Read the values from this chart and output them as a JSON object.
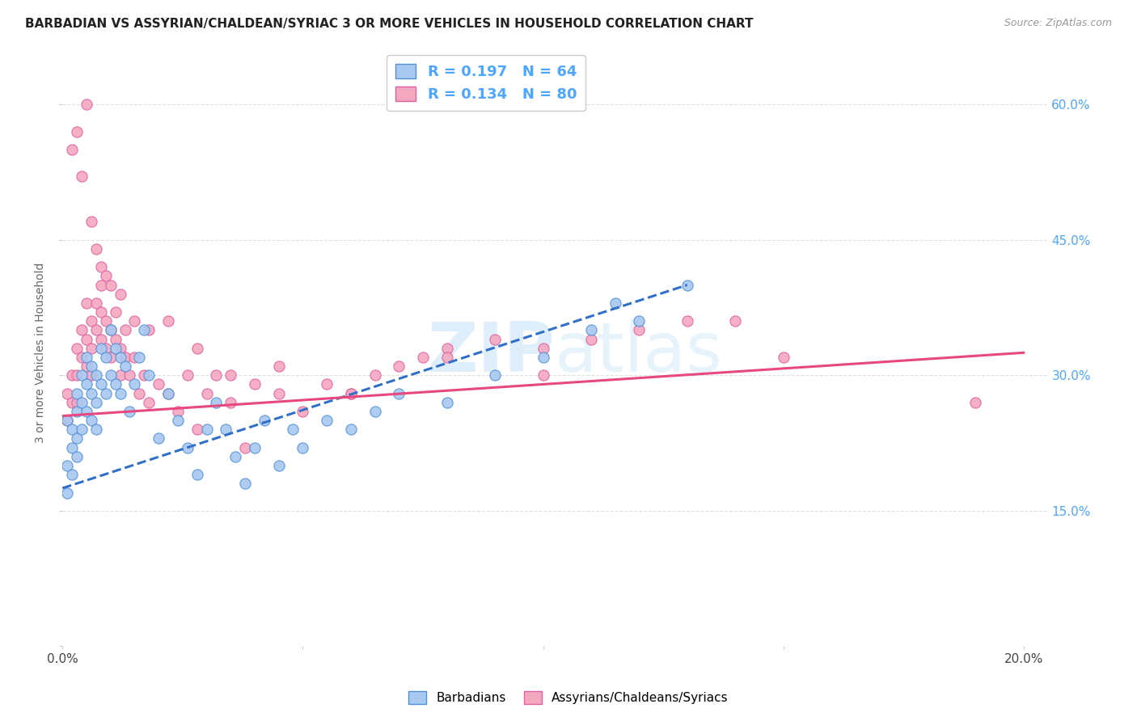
{
  "title": "BARBADIAN VS ASSYRIAN/CHALDEAN/SYRIAC 3 OR MORE VEHICLES IN HOUSEHOLD CORRELATION CHART",
  "source": "Source: ZipAtlas.com",
  "ylabel": "3 or more Vehicles in Household",
  "legend_blue_R": "R = 0.197",
  "legend_blue_N": "N = 64",
  "legend_pink_R": "R = 0.134",
  "legend_pink_N": "N = 80",
  "legend_label_blue": "Barbadians",
  "legend_label_pink": "Assyrians/Chaldeans/Syriacs",
  "blue_scatter_color": "#a8c8f0",
  "pink_scatter_color": "#f4a8c0",
  "blue_line_color": "#3070c8",
  "pink_line_color": "#e84880",
  "blue_edge_color": "#5090d8",
  "pink_edge_color": "#e060a0",
  "right_axis_label_color": "#4da6ff",
  "legend_text_color": "#4da6ff",
  "watermark_color": "#d0e8f8",
  "grid_color": "#e0e0e0",
  "title_color": "#222222",
  "background_color": "#ffffff",
  "blue_scatter_x": [
    0.001,
    0.001,
    0.001,
    0.002,
    0.002,
    0.002,
    0.003,
    0.003,
    0.003,
    0.003,
    0.004,
    0.004,
    0.004,
    0.005,
    0.005,
    0.005,
    0.006,
    0.006,
    0.006,
    0.007,
    0.007,
    0.007,
    0.008,
    0.008,
    0.009,
    0.009,
    0.01,
    0.01,
    0.011,
    0.011,
    0.012,
    0.012,
    0.013,
    0.014,
    0.015,
    0.016,
    0.017,
    0.018,
    0.02,
    0.022,
    0.024,
    0.026,
    0.028,
    0.03,
    0.032,
    0.034,
    0.036,
    0.038,
    0.04,
    0.042,
    0.045,
    0.048,
    0.05,
    0.055,
    0.06,
    0.065,
    0.07,
    0.08,
    0.09,
    0.1,
    0.11,
    0.115,
    0.12,
    0.13
  ],
  "blue_scatter_y": [
    0.25,
    0.2,
    0.17,
    0.22,
    0.19,
    0.24,
    0.28,
    0.26,
    0.23,
    0.21,
    0.3,
    0.27,
    0.24,
    0.32,
    0.29,
    0.26,
    0.31,
    0.28,
    0.25,
    0.3,
    0.27,
    0.24,
    0.33,
    0.29,
    0.32,
    0.28,
    0.35,
    0.3,
    0.33,
    0.29,
    0.32,
    0.28,
    0.31,
    0.26,
    0.29,
    0.32,
    0.35,
    0.3,
    0.23,
    0.28,
    0.25,
    0.22,
    0.19,
    0.24,
    0.27,
    0.24,
    0.21,
    0.18,
    0.22,
    0.25,
    0.2,
    0.24,
    0.22,
    0.25,
    0.24,
    0.26,
    0.28,
    0.27,
    0.3,
    0.32,
    0.35,
    0.38,
    0.36,
    0.4
  ],
  "pink_scatter_x": [
    0.001,
    0.001,
    0.002,
    0.002,
    0.003,
    0.003,
    0.003,
    0.004,
    0.004,
    0.005,
    0.005,
    0.005,
    0.006,
    0.006,
    0.006,
    0.007,
    0.007,
    0.008,
    0.008,
    0.008,
    0.009,
    0.009,
    0.01,
    0.01,
    0.011,
    0.011,
    0.012,
    0.012,
    0.013,
    0.013,
    0.014,
    0.015,
    0.016,
    0.017,
    0.018,
    0.02,
    0.022,
    0.024,
    0.026,
    0.028,
    0.03,
    0.032,
    0.035,
    0.038,
    0.04,
    0.045,
    0.05,
    0.055,
    0.06,
    0.065,
    0.07,
    0.075,
    0.08,
    0.09,
    0.1,
    0.11,
    0.12,
    0.13,
    0.14,
    0.15,
    0.002,
    0.003,
    0.004,
    0.005,
    0.006,
    0.007,
    0.008,
    0.009,
    0.01,
    0.012,
    0.015,
    0.018,
    0.022,
    0.028,
    0.035,
    0.045,
    0.06,
    0.08,
    0.1,
    0.19
  ],
  "pink_scatter_y": [
    0.28,
    0.25,
    0.3,
    0.27,
    0.33,
    0.3,
    0.27,
    0.35,
    0.32,
    0.38,
    0.34,
    0.31,
    0.36,
    0.33,
    0.3,
    0.38,
    0.35,
    0.4,
    0.37,
    0.34,
    0.36,
    0.33,
    0.35,
    0.32,
    0.37,
    0.34,
    0.33,
    0.3,
    0.35,
    0.32,
    0.3,
    0.32,
    0.28,
    0.3,
    0.27,
    0.29,
    0.28,
    0.26,
    0.3,
    0.24,
    0.28,
    0.3,
    0.27,
    0.22,
    0.29,
    0.28,
    0.26,
    0.29,
    0.28,
    0.3,
    0.31,
    0.32,
    0.33,
    0.34,
    0.33,
    0.34,
    0.35,
    0.36,
    0.36,
    0.32,
    0.55,
    0.57,
    0.52,
    0.6,
    0.47,
    0.44,
    0.42,
    0.41,
    0.4,
    0.39,
    0.36,
    0.35,
    0.36,
    0.33,
    0.3,
    0.31,
    0.28,
    0.32,
    0.3,
    0.27
  ],
  "blue_trend_x": [
    0.0,
    0.13
  ],
  "blue_trend_y": [
    0.175,
    0.4
  ],
  "pink_trend_x": [
    0.0,
    0.2
  ],
  "pink_trend_y": [
    0.255,
    0.325
  ],
  "xlim": [
    0.0,
    0.205
  ],
  "ylim": [
    0.0,
    0.65
  ],
  "xticks": [
    0.0,
    0.05,
    0.1,
    0.15,
    0.2
  ],
  "yticks": [
    0.0,
    0.15,
    0.3,
    0.45,
    0.6
  ],
  "right_yticks": [
    0.15,
    0.3,
    0.45,
    0.6
  ],
  "right_yticklabels": [
    "15.0%",
    "30.0%",
    "45.0%",
    "60.0%"
  ],
  "title_fontsize": 11,
  "source_fontsize": 9,
  "axis_fontsize": 11,
  "legend_fontsize": 13
}
